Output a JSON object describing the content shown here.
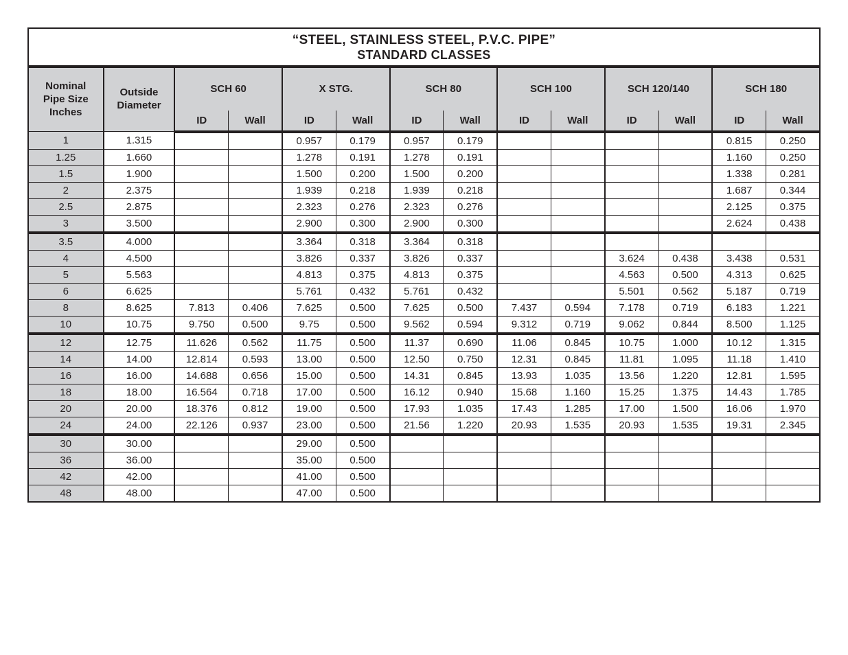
{
  "title": {
    "line1": "“STEEL, STAINLESS STEEL, P.V.C. PIPE”",
    "line2": "STANDARD CLASSES"
  },
  "colors": {
    "border": "#231f20",
    "header_bg": "#d1d2d4",
    "background": "#ffffff",
    "text": "#231f20"
  },
  "typography": {
    "title_fontsize": 19,
    "header_fontsize": 15,
    "body_fontsize": 15,
    "font_family": "Arial"
  },
  "headers": {
    "nominal": "Nominal Pipe Size Inches",
    "od": "Outside Diameter",
    "schedules": [
      "SCH 60",
      "X STG.",
      "SCH 80",
      "SCH 100",
      "SCH 120/140",
      "SCH 180"
    ],
    "sub_id": "ID",
    "sub_wall": "Wall"
  },
  "groups": [
    {
      "rows": [
        {
          "size": "1",
          "od": "1.315",
          "s60": [
            "",
            ""
          ],
          "xstg": [
            "0.957",
            "0.179"
          ],
          "s80": [
            "0.957",
            "0.179"
          ],
          "s100": [
            "",
            ""
          ],
          "s120": [
            "",
            ""
          ],
          "s180": [
            "0.815",
            "0.250"
          ]
        },
        {
          "size": "1.25",
          "od": "1.660",
          "s60": [
            "",
            ""
          ],
          "xstg": [
            "1.278",
            "0.191"
          ],
          "s80": [
            "1.278",
            "0.191"
          ],
          "s100": [
            "",
            ""
          ],
          "s120": [
            "",
            ""
          ],
          "s180": [
            "1.160",
            "0.250"
          ]
        },
        {
          "size": "1.5",
          "od": "1.900",
          "s60": [
            "",
            ""
          ],
          "xstg": [
            "1.500",
            "0.200"
          ],
          "s80": [
            "1.500",
            "0.200"
          ],
          "s100": [
            "",
            ""
          ],
          "s120": [
            "",
            ""
          ],
          "s180": [
            "1.338",
            "0.281"
          ]
        },
        {
          "size": "2",
          "od": "2.375",
          "s60": [
            "",
            ""
          ],
          "xstg": [
            "1.939",
            "0.218"
          ],
          "s80": [
            "1.939",
            "0.218"
          ],
          "s100": [
            "",
            ""
          ],
          "s120": [
            "",
            ""
          ],
          "s180": [
            "1.687",
            "0.344"
          ]
        },
        {
          "size": "2.5",
          "od": "2.875",
          "s60": [
            "",
            ""
          ],
          "xstg": [
            "2.323",
            "0.276"
          ],
          "s80": [
            "2.323",
            "0.276"
          ],
          "s100": [
            "",
            ""
          ],
          "s120": [
            "",
            ""
          ],
          "s180": [
            "2.125",
            "0.375"
          ]
        },
        {
          "size": "3",
          "od": "3.500",
          "s60": [
            "",
            ""
          ],
          "xstg": [
            "2.900",
            "0.300"
          ],
          "s80": [
            "2.900",
            "0.300"
          ],
          "s100": [
            "",
            ""
          ],
          "s120": [
            "",
            ""
          ],
          "s180": [
            "2.624",
            "0.438"
          ]
        }
      ]
    },
    {
      "rows": [
        {
          "size": "3.5",
          "od": "4.000",
          "s60": [
            "",
            ""
          ],
          "xstg": [
            "3.364",
            "0.318"
          ],
          "s80": [
            "3.364",
            "0.318"
          ],
          "s100": [
            "",
            ""
          ],
          "s120": [
            "",
            ""
          ],
          "s180": [
            "",
            ""
          ]
        },
        {
          "size": "4",
          "od": "4.500",
          "s60": [
            "",
            ""
          ],
          "xstg": [
            "3.826",
            "0.337"
          ],
          "s80": [
            "3.826",
            "0.337"
          ],
          "s100": [
            "",
            ""
          ],
          "s120": [
            "3.624",
            "0.438"
          ],
          "s180": [
            "3.438",
            "0.531"
          ]
        },
        {
          "size": "5",
          "od": "5.563",
          "s60": [
            "",
            ""
          ],
          "xstg": [
            "4.813",
            "0.375"
          ],
          "s80": [
            "4.813",
            "0.375"
          ],
          "s100": [
            "",
            ""
          ],
          "s120": [
            "4.563",
            "0.500"
          ],
          "s180": [
            "4.313",
            "0.625"
          ]
        },
        {
          "size": "6",
          "od": "6.625",
          "s60": [
            "",
            ""
          ],
          "xstg": [
            "5.761",
            "0.432"
          ],
          "s80": [
            "5.761",
            "0.432"
          ],
          "s100": [
            "",
            ""
          ],
          "s120": [
            "5.501",
            "0.562"
          ],
          "s180": [
            "5.187",
            "0.719"
          ]
        },
        {
          "size": "8",
          "od": "8.625",
          "s60": [
            "7.813",
            "0.406"
          ],
          "xstg": [
            "7.625",
            "0.500"
          ],
          "s80": [
            "7.625",
            "0.500"
          ],
          "s100": [
            "7.437",
            "0.594"
          ],
          "s120": [
            "7.178",
            "0.719"
          ],
          "s180": [
            "6.183",
            "1.221"
          ]
        },
        {
          "size": "10",
          "od": "10.75",
          "s60": [
            "9.750",
            "0.500"
          ],
          "xstg": [
            "9.75",
            "0.500"
          ],
          "s80": [
            "9.562",
            "0.594"
          ],
          "s100": [
            "9.312",
            "0.719"
          ],
          "s120": [
            "9.062",
            "0.844"
          ],
          "s180": [
            "8.500",
            "1.125"
          ]
        }
      ]
    },
    {
      "rows": [
        {
          "size": "12",
          "od": "12.75",
          "s60": [
            "11.626",
            "0.562"
          ],
          "xstg": [
            "11.75",
            "0.500"
          ],
          "s80": [
            "11.37",
            "0.690"
          ],
          "s100": [
            "11.06",
            "0.845"
          ],
          "s120": [
            "10.75",
            "1.000"
          ],
          "s180": [
            "10.12",
            "1.315"
          ]
        },
        {
          "size": "14",
          "od": "14.00",
          "s60": [
            "12.814",
            "0.593"
          ],
          "xstg": [
            "13.00",
            "0.500"
          ],
          "s80": [
            "12.50",
            "0.750"
          ],
          "s100": [
            "12.31",
            "0.845"
          ],
          "s120": [
            "11.81",
            "1.095"
          ],
          "s180": [
            "11.18",
            "1.410"
          ]
        },
        {
          "size": "16",
          "od": "16.00",
          "s60": [
            "14.688",
            "0.656"
          ],
          "xstg": [
            "15.00",
            "0.500"
          ],
          "s80": [
            "14.31",
            "0.845"
          ],
          "s100": [
            "13.93",
            "1.035"
          ],
          "s120": [
            "13.56",
            "1.220"
          ],
          "s180": [
            "12.81",
            "1.595"
          ]
        },
        {
          "size": "18",
          "od": "18.00",
          "s60": [
            "16.564",
            "0.718"
          ],
          "xstg": [
            "17.00",
            "0.500"
          ],
          "s80": [
            "16.12",
            "0.940"
          ],
          "s100": [
            "15.68",
            "1.160"
          ],
          "s120": [
            "15.25",
            "1.375"
          ],
          "s180": [
            "14.43",
            "1.785"
          ]
        },
        {
          "size": "20",
          "od": "20.00",
          "s60": [
            "18.376",
            "0.812"
          ],
          "xstg": [
            "19.00",
            "0.500"
          ],
          "s80": [
            "17.93",
            "1.035"
          ],
          "s100": [
            "17.43",
            "1.285"
          ],
          "s120": [
            "17.00",
            "1.500"
          ],
          "s180": [
            "16.06",
            "1.970"
          ]
        },
        {
          "size": "24",
          "od": "24.00",
          "s60": [
            "22.126",
            "0.937"
          ],
          "xstg": [
            "23.00",
            "0.500"
          ],
          "s80": [
            "21.56",
            "1.220"
          ],
          "s100": [
            "20.93",
            "1.535"
          ],
          "s120": [
            "20.93",
            "1.535"
          ],
          "s180": [
            "19.31",
            "2.345"
          ]
        }
      ]
    },
    {
      "rows": [
        {
          "size": "30",
          "od": "30.00",
          "s60": [
            "",
            ""
          ],
          "xstg": [
            "29.00",
            "0.500"
          ],
          "s80": [
            "",
            ""
          ],
          "s100": [
            "",
            ""
          ],
          "s120": [
            "",
            ""
          ],
          "s180": [
            "",
            ""
          ]
        },
        {
          "size": "36",
          "od": "36.00",
          "s60": [
            "",
            ""
          ],
          "xstg": [
            "35.00",
            "0.500"
          ],
          "s80": [
            "",
            ""
          ],
          "s100": [
            "",
            ""
          ],
          "s120": [
            "",
            ""
          ],
          "s180": [
            "",
            ""
          ]
        },
        {
          "size": "42",
          "od": "42.00",
          "s60": [
            "",
            ""
          ],
          "xstg": [
            "41.00",
            "0.500"
          ],
          "s80": [
            "",
            ""
          ],
          "s100": [
            "",
            ""
          ],
          "s120": [
            "",
            ""
          ],
          "s180": [
            "",
            ""
          ]
        },
        {
          "size": "48",
          "od": "48.00",
          "s60": [
            "",
            ""
          ],
          "xstg": [
            "47.00",
            "0.500"
          ],
          "s80": [
            "",
            ""
          ],
          "s100": [
            "",
            ""
          ],
          "s120": [
            "",
            ""
          ],
          "s180": [
            "",
            ""
          ]
        }
      ]
    }
  ]
}
